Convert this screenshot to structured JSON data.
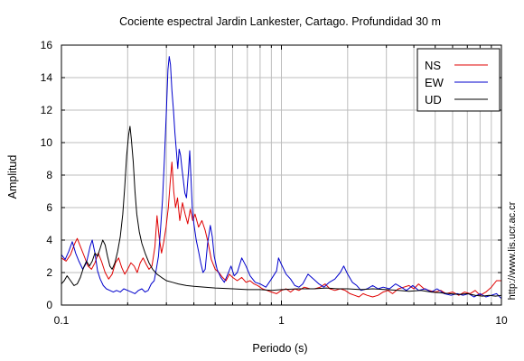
{
  "chart_data": {
    "type": "line",
    "title": "Cociente espectral Jardin Lankester, Cartago. Profundidad 30 m",
    "xlabel": "Periodo (s)",
    "ylabel": "Amplitud",
    "side_text": "http://www.lis.ucr.ac.cr",
    "x_scale": "log",
    "xlim": [
      0.1,
      10
    ],
    "ylim": [
      0,
      16
    ],
    "grid": true,
    "legend_position": "top-right",
    "x_ticks": [
      {
        "value": 0.1,
        "label": "0.1"
      },
      {
        "value": 1,
        "label": "1"
      },
      {
        "value": 10,
        "label": "10"
      }
    ],
    "y_ticks": [
      {
        "value": 0,
        "label": "0"
      },
      {
        "value": 2,
        "label": "2"
      },
      {
        "value": 4,
        "label": "4"
      },
      {
        "value": 6,
        "label": "6"
      },
      {
        "value": 8,
        "label": "8"
      },
      {
        "value": 10,
        "label": "10"
      },
      {
        "value": 12,
        "label": "12"
      },
      {
        "value": 14,
        "label": "14"
      },
      {
        "value": 16,
        "label": "16"
      }
    ],
    "series": [
      {
        "name": "NS",
        "color": "#e00000",
        "points": [
          [
            0.1,
            2.9
          ],
          [
            0.105,
            2.7
          ],
          [
            0.11,
            3.1
          ],
          [
            0.115,
            3.8
          ],
          [
            0.118,
            4.1
          ],
          [
            0.122,
            3.6
          ],
          [
            0.127,
            3.0
          ],
          [
            0.132,
            2.4
          ],
          [
            0.137,
            2.2
          ],
          [
            0.142,
            2.6
          ],
          [
            0.147,
            3.2
          ],
          [
            0.152,
            2.7
          ],
          [
            0.158,
            2.0
          ],
          [
            0.164,
            1.6
          ],
          [
            0.17,
            1.9
          ],
          [
            0.176,
            2.6
          ],
          [
            0.182,
            2.9
          ],
          [
            0.188,
            2.3
          ],
          [
            0.194,
            1.9
          ],
          [
            0.2,
            2.2
          ],
          [
            0.207,
            2.6
          ],
          [
            0.214,
            2.4
          ],
          [
            0.221,
            2.0
          ],
          [
            0.228,
            2.6
          ],
          [
            0.235,
            2.9
          ],
          [
            0.243,
            2.5
          ],
          [
            0.25,
            2.2
          ],
          [
            0.258,
            2.4
          ],
          [
            0.266,
            3.6
          ],
          [
            0.272,
            5.5
          ],
          [
            0.278,
            4.2
          ],
          [
            0.285,
            3.2
          ],
          [
            0.292,
            3.9
          ],
          [
            0.299,
            4.8
          ],
          [
            0.306,
            6.0
          ],
          [
            0.312,
            7.5
          ],
          [
            0.318,
            8.8
          ],
          [
            0.324,
            7.0
          ],
          [
            0.33,
            6.0
          ],
          [
            0.337,
            6.6
          ],
          [
            0.345,
            5.2
          ],
          [
            0.355,
            6.3
          ],
          [
            0.365,
            5.6
          ],
          [
            0.375,
            5.0
          ],
          [
            0.385,
            5.9
          ],
          [
            0.395,
            5.2
          ],
          [
            0.405,
            5.6
          ],
          [
            0.42,
            4.8
          ],
          [
            0.435,
            5.2
          ],
          [
            0.45,
            4.6
          ],
          [
            0.465,
            3.8
          ],
          [
            0.48,
            2.8
          ],
          [
            0.5,
            2.2
          ],
          [
            0.52,
            2.0
          ],
          [
            0.54,
            1.7
          ],
          [
            0.56,
            1.5
          ],
          [
            0.58,
            1.9
          ],
          [
            0.6,
            1.7
          ],
          [
            0.63,
            1.5
          ],
          [
            0.66,
            1.7
          ],
          [
            0.69,
            1.4
          ],
          [
            0.72,
            1.5
          ],
          [
            0.75,
            1.3
          ],
          [
            0.78,
            1.2
          ],
          [
            0.82,
            1.0
          ],
          [
            0.86,
            0.9
          ],
          [
            0.9,
            0.8
          ],
          [
            0.95,
            0.7
          ],
          [
            1.0,
            0.9
          ],
          [
            1.05,
            1.0
          ],
          [
            1.1,
            0.8
          ],
          [
            1.15,
            1.0
          ],
          [
            1.2,
            0.9
          ],
          [
            1.27,
            1.1
          ],
          [
            1.35,
            1.0
          ],
          [
            1.42,
            1.0
          ],
          [
            1.5,
            1.1
          ],
          [
            1.58,
            1.3
          ],
          [
            1.66,
            1.0
          ],
          [
            1.75,
            0.9
          ],
          [
            1.85,
            1.0
          ],
          [
            1.95,
            0.9
          ],
          [
            2.05,
            0.7
          ],
          [
            2.15,
            0.6
          ],
          [
            2.25,
            0.5
          ],
          [
            2.35,
            0.7
          ],
          [
            2.45,
            0.6
          ],
          [
            2.6,
            0.5
          ],
          [
            2.75,
            0.6
          ],
          [
            2.9,
            0.8
          ],
          [
            3.05,
            0.9
          ],
          [
            3.2,
            0.7
          ],
          [
            3.4,
            1.0
          ],
          [
            3.6,
            1.1
          ],
          [
            3.8,
            1.2
          ],
          [
            4.0,
            1.0
          ],
          [
            4.2,
            1.3
          ],
          [
            4.45,
            1.0
          ],
          [
            4.7,
            0.9
          ],
          [
            5.0,
            0.8
          ],
          [
            5.3,
            0.9
          ],
          [
            5.6,
            0.7
          ],
          [
            6.0,
            0.8
          ],
          [
            6.4,
            0.6
          ],
          [
            6.8,
            0.8
          ],
          [
            7.2,
            0.7
          ],
          [
            7.6,
            0.9
          ],
          [
            8.0,
            0.6
          ],
          [
            8.5,
            0.8
          ],
          [
            9.0,
            1.1
          ],
          [
            9.5,
            1.5
          ],
          [
            10.0,
            1.5
          ]
        ]
      },
      {
        "name": "EW",
        "color": "#0000cc",
        "points": [
          [
            0.1,
            3.1
          ],
          [
            0.104,
            2.8
          ],
          [
            0.108,
            3.3
          ],
          [
            0.112,
            3.9
          ],
          [
            0.116,
            3.2
          ],
          [
            0.12,
            2.7
          ],
          [
            0.125,
            2.2
          ],
          [
            0.13,
            2.6
          ],
          [
            0.135,
            3.6
          ],
          [
            0.138,
            4.0
          ],
          [
            0.142,
            3.2
          ],
          [
            0.146,
            2.1
          ],
          [
            0.15,
            1.6
          ],
          [
            0.155,
            1.2
          ],
          [
            0.16,
            1.0
          ],
          [
            0.166,
            0.9
          ],
          [
            0.172,
            0.8
          ],
          [
            0.178,
            0.9
          ],
          [
            0.185,
            0.8
          ],
          [
            0.192,
            1.0
          ],
          [
            0.2,
            0.9
          ],
          [
            0.208,
            0.8
          ],
          [
            0.216,
            0.7
          ],
          [
            0.224,
            0.9
          ],
          [
            0.232,
            1.0
          ],
          [
            0.24,
            0.8
          ],
          [
            0.248,
            0.9
          ],
          [
            0.256,
            1.3
          ],
          [
            0.264,
            1.5
          ],
          [
            0.27,
            2.2
          ],
          [
            0.276,
            3.0
          ],
          [
            0.282,
            4.6
          ],
          [
            0.288,
            6.5
          ],
          [
            0.294,
            9.0
          ],
          [
            0.3,
            12.0
          ],
          [
            0.305,
            14.5
          ],
          [
            0.309,
            15.3
          ],
          [
            0.313,
            14.8
          ],
          [
            0.318,
            13.2
          ],
          [
            0.323,
            12.0
          ],
          [
            0.328,
            10.6
          ],
          [
            0.333,
            9.5
          ],
          [
            0.338,
            8.4
          ],
          [
            0.343,
            9.6
          ],
          [
            0.348,
            9.2
          ],
          [
            0.353,
            8.4
          ],
          [
            0.358,
            7.7
          ],
          [
            0.364,
            6.9
          ],
          [
            0.37,
            6.6
          ],
          [
            0.378,
            8.2
          ],
          [
            0.383,
            9.5
          ],
          [
            0.388,
            7.8
          ],
          [
            0.394,
            5.8
          ],
          [
            0.4,
            5.0
          ],
          [
            0.41,
            4.0
          ],
          [
            0.42,
            3.3
          ],
          [
            0.43,
            2.6
          ],
          [
            0.44,
            2.0
          ],
          [
            0.45,
            2.2
          ],
          [
            0.462,
            3.8
          ],
          [
            0.475,
            4.9
          ],
          [
            0.485,
            4.2
          ],
          [
            0.495,
            3.0
          ],
          [
            0.51,
            2.2
          ],
          [
            0.53,
            1.7
          ],
          [
            0.55,
            1.4
          ],
          [
            0.57,
            1.9
          ],
          [
            0.59,
            2.4
          ],
          [
            0.61,
            1.8
          ],
          [
            0.63,
            2.0
          ],
          [
            0.66,
            2.9
          ],
          [
            0.69,
            2.4
          ],
          [
            0.72,
            1.8
          ],
          [
            0.76,
            1.4
          ],
          [
            0.8,
            1.3
          ],
          [
            0.85,
            1.1
          ],
          [
            0.9,
            1.6
          ],
          [
            0.95,
            2.1
          ],
          [
            0.97,
            2.9
          ],
          [
            1.0,
            2.5
          ],
          [
            1.05,
            1.9
          ],
          [
            1.1,
            1.6
          ],
          [
            1.15,
            1.2
          ],
          [
            1.2,
            1.1
          ],
          [
            1.25,
            1.3
          ],
          [
            1.32,
            1.9
          ],
          [
            1.4,
            1.6
          ],
          [
            1.48,
            1.3
          ],
          [
            1.56,
            1.1
          ],
          [
            1.65,
            1.4
          ],
          [
            1.75,
            1.6
          ],
          [
            1.85,
            2.0
          ],
          [
            1.92,
            2.4
          ],
          [
            2.0,
            1.9
          ],
          [
            2.1,
            1.4
          ],
          [
            2.2,
            1.2
          ],
          [
            2.3,
            0.9
          ],
          [
            2.45,
            1.0
          ],
          [
            2.6,
            1.2
          ],
          [
            2.75,
            1.0
          ],
          [
            2.9,
            1.1
          ],
          [
            3.1,
            1.0
          ],
          [
            3.3,
            1.3
          ],
          [
            3.5,
            1.1
          ],
          [
            3.7,
            0.9
          ],
          [
            3.95,
            1.2
          ],
          [
            4.2,
            0.9
          ],
          [
            4.5,
            1.0
          ],
          [
            4.8,
            0.8
          ],
          [
            5.1,
            1.0
          ],
          [
            5.5,
            0.7
          ],
          [
            5.9,
            0.6
          ],
          [
            6.3,
            0.7
          ],
          [
            6.7,
            0.6
          ],
          [
            7.1,
            0.7
          ],
          [
            7.5,
            0.5
          ],
          [
            8.0,
            0.7
          ],
          [
            8.5,
            0.5
          ],
          [
            9.0,
            0.6
          ],
          [
            9.5,
            0.7
          ],
          [
            10.0,
            0.4
          ]
        ]
      },
      {
        "name": "UD",
        "color": "#000000",
        "points": [
          [
            0.1,
            1.3
          ],
          [
            0.103,
            1.5
          ],
          [
            0.106,
            1.8
          ],
          [
            0.11,
            1.5
          ],
          [
            0.114,
            1.2
          ],
          [
            0.118,
            1.3
          ],
          [
            0.122,
            1.7
          ],
          [
            0.126,
            2.3
          ],
          [
            0.13,
            2.7
          ],
          [
            0.134,
            2.4
          ],
          [
            0.138,
            2.7
          ],
          [
            0.142,
            3.2
          ],
          [
            0.146,
            3.0
          ],
          [
            0.15,
            3.5
          ],
          [
            0.154,
            4.0
          ],
          [
            0.158,
            3.7
          ],
          [
            0.162,
            3.0
          ],
          [
            0.166,
            2.4
          ],
          [
            0.17,
            2.2
          ],
          [
            0.175,
            2.6
          ],
          [
            0.18,
            3.3
          ],
          [
            0.185,
            4.2
          ],
          [
            0.19,
            5.6
          ],
          [
            0.194,
            7.3
          ],
          [
            0.198,
            9.2
          ],
          [
            0.202,
            10.5
          ],
          [
            0.205,
            11.0
          ],
          [
            0.208,
            10.2
          ],
          [
            0.212,
            8.8
          ],
          [
            0.216,
            7.0
          ],
          [
            0.22,
            5.6
          ],
          [
            0.226,
            4.5
          ],
          [
            0.232,
            3.8
          ],
          [
            0.24,
            3.2
          ],
          [
            0.25,
            2.6
          ],
          [
            0.26,
            2.2
          ],
          [
            0.272,
            1.9
          ],
          [
            0.285,
            1.7
          ],
          [
            0.3,
            1.5
          ],
          [
            0.32,
            1.4
          ],
          [
            0.34,
            1.3
          ],
          [
            0.37,
            1.2
          ],
          [
            0.4,
            1.15
          ],
          [
            0.45,
            1.1
          ],
          [
            0.5,
            1.05
          ],
          [
            0.6,
            1.0
          ],
          [
            0.7,
            0.95
          ],
          [
            0.8,
            0.95
          ],
          [
            0.9,
            0.9
          ],
          [
            1.0,
            0.95
          ],
          [
            1.2,
            1.0
          ],
          [
            1.4,
            1.0
          ],
          [
            1.6,
            1.05
          ],
          [
            1.8,
            1.0
          ],
          [
            2.0,
            1.0
          ],
          [
            2.3,
            0.95
          ],
          [
            2.6,
            1.0
          ],
          [
            3.0,
            0.95
          ],
          [
            3.4,
            0.9
          ],
          [
            3.8,
            0.85
          ],
          [
            4.3,
            0.9
          ],
          [
            4.8,
            0.8
          ],
          [
            5.3,
            0.75
          ],
          [
            5.8,
            0.7
          ],
          [
            6.4,
            0.65
          ],
          [
            7.0,
            0.7
          ],
          [
            7.6,
            0.6
          ],
          [
            8.2,
            0.55
          ],
          [
            8.8,
            0.6
          ],
          [
            9.4,
            0.55
          ],
          [
            10.0,
            0.6
          ]
        ]
      }
    ]
  }
}
